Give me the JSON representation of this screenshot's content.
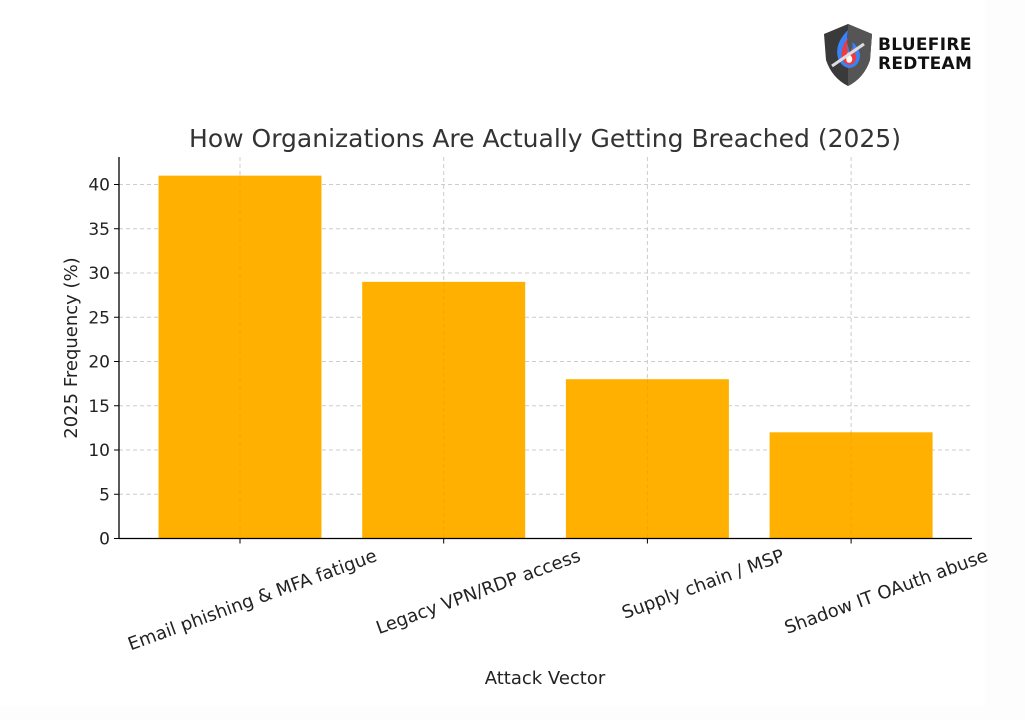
{
  "logo": {
    "line1": "BLUEFIRE",
    "line2": "REDTEAM",
    "icon": "shield-flame-icon"
  },
  "colors": {
    "bar": "#ffb000",
    "text": "#333333",
    "axis": "#000000",
    "grid": "#cccccc"
  },
  "chart_data": {
    "type": "bar",
    "title": "How Organizations Are Actually Getting Breached (2025)",
    "xlabel": "Attack Vector",
    "ylabel": "2025 Frequency (%)",
    "categories": [
      "Email phishing & MFA fatigue",
      "Legacy VPN/RDP access",
      "Supply chain / MSP",
      "Shadow IT OAuth abuse"
    ],
    "values": [
      41,
      29,
      18,
      12
    ],
    "ylim": [
      0,
      43
    ],
    "yticks": [
      "0",
      "5",
      "10",
      "15",
      "20",
      "25",
      "30",
      "35",
      "40"
    ],
    "grid": true,
    "legend": null
  }
}
